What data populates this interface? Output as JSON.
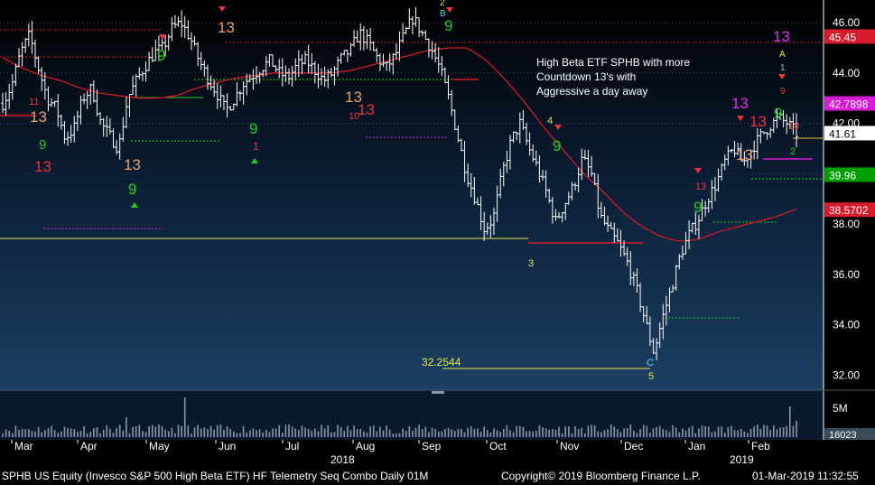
{
  "chart_data": {
    "type": "bar",
    "ticker_line": "SPHB US Equity (Invesco S&P 500 High Beta ETF) HF Telemetry Seq Combo  Daily 01M",
    "copyright": "Copyright© 2019 Bloomberg Finance L.P.",
    "timestamp": "01-Mar-2019 11:32:55",
    "annotation": [
      "High Beta ETF SPHB with more",
      "Countdown 13's with",
      "Aggressive a day away"
    ],
    "price_axis": {
      "ticks": [
        "32.00",
        "34.00",
        "36.00",
        "38.00",
        "40.00",
        "42.00",
        "44.00",
        "46.00"
      ],
      "ylim": [
        31.4,
        46.9
      ]
    },
    "price_tags": [
      {
        "label": "45.45",
        "value": 45.45,
        "color": "#d81b2a",
        "text_color": "#ffffff"
      },
      {
        "label": "42.7898",
        "value": 42.79,
        "color": "#d81bd8",
        "text_color": "#ffffff"
      },
      {
        "label": "41.61",
        "value": 41.61,
        "color": "#ffffff",
        "text_color": "#000000"
      },
      {
        "label": "39.96",
        "value": 39.96,
        "color": "#00a000",
        "text_color": "#ffffff"
      },
      {
        "label": "38.5702",
        "value": 38.57,
        "color": "#d81b2a",
        "text_color": "#ffffff"
      }
    ],
    "volume_axis": {
      "tick": "5M",
      "last": "16023"
    },
    "months": [
      "Mar",
      "Apr",
      "May",
      "Jun",
      "Jul",
      "Aug",
      "Sep",
      "Oct",
      "Nov",
      "Dec",
      "Jan",
      "Feb"
    ],
    "years": [
      "2018",
      "2019"
    ],
    "low_label": "32.2544",
    "close_series": [
      42.8,
      43.5,
      44.8,
      45.5,
      44.2,
      43.0,
      42.6,
      41.4,
      41.8,
      43.0,
      43.4,
      42.0,
      41.5,
      41.0,
      43.0,
      43.7,
      44.3,
      44.8,
      45.0,
      45.8,
      46.0,
      45.4,
      44.5,
      43.8,
      43.2,
      42.5,
      43.0,
      43.6,
      43.9,
      44.2,
      44.5,
      44.0,
      43.8,
      44.3,
      44.5,
      44.1,
      43.7,
      44.0,
      44.6,
      44.9,
      45.6,
      45.2,
      44.6,
      44.2,
      44.7,
      45.5,
      46.2,
      45.6,
      45.0,
      44.2,
      43.0,
      41.5,
      40.0,
      39.0,
      37.8,
      38.2,
      40.0,
      41.3,
      42.0,
      41.0,
      40.2,
      39.2,
      38.1,
      38.8,
      39.5,
      40.6,
      40.0,
      38.3,
      37.7,
      37.2,
      36.5,
      35.5,
      34.2,
      32.9,
      34.3,
      35.5,
      36.8,
      37.6,
      38.2,
      39.0,
      39.6,
      40.5,
      41.0,
      40.4,
      41.0,
      41.5,
      41.9,
      42.2,
      42.0,
      41.6
    ],
    "sma_series": [
      44.6,
      44.2,
      43.9,
      43.7,
      43.4,
      43.2,
      43.1,
      43.0,
      43.0,
      43.1,
      43.4,
      43.6,
      43.8,
      43.9,
      44.0,
      44.0,
      44.0,
      44.0,
      44.1,
      44.3,
      44.5,
      44.7,
      44.9,
      45.0,
      45.0,
      44.5,
      43.7,
      42.8,
      41.8,
      40.9,
      40.0,
      39.3,
      38.5,
      37.9,
      37.5,
      37.3,
      37.4,
      37.7,
      37.9,
      38.1,
      38.3,
      38.6
    ]
  }
}
